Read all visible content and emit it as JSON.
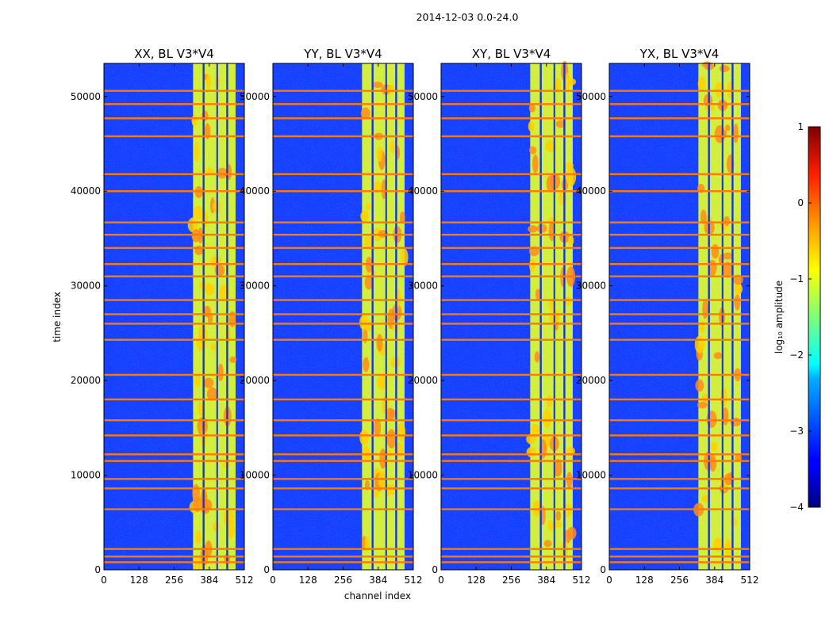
{
  "figure": {
    "suptitle": "2014-12-03 0.0-24.0"
  },
  "chart_data": {
    "type": "heatmap",
    "xlabel": "channel index",
    "ylabel": "time index",
    "xlim": [
      0,
      512
    ],
    "ylim": [
      0,
      53500
    ],
    "x_ticks": [
      0,
      128,
      256,
      384,
      512
    ],
    "y_ticks": [
      0,
      10000,
      20000,
      30000,
      40000,
      50000
    ],
    "panels": [
      {
        "title": "XX, BL V3*V4"
      },
      {
        "title": "YY, BL V3*V4"
      },
      {
        "title": "XY, BL V3*V4"
      },
      {
        "title": "YX, BL V3*V4"
      }
    ],
    "signal_band": [
      325,
      480
    ],
    "sub_band_gaps": [
      360,
      367,
      410,
      416,
      446,
      453
    ],
    "horizontal_flag_rows": [
      50600,
      49200,
      47700,
      45800,
      41800,
      40000,
      36700,
      35400,
      34000,
      32300,
      31000,
      28500,
      27000,
      26000,
      24300,
      20600,
      18000,
      15800,
      14200,
      12200,
      11500,
      9600,
      8600,
      6400,
      2200,
      1400,
      800
    ],
    "colorbar": {
      "label": "log₁₀ amplitude",
      "range": [
        -4,
        1
      ],
      "ticks": [
        1,
        0,
        -1,
        -2,
        -3,
        -4
      ],
      "colormap": "jet"
    }
  }
}
